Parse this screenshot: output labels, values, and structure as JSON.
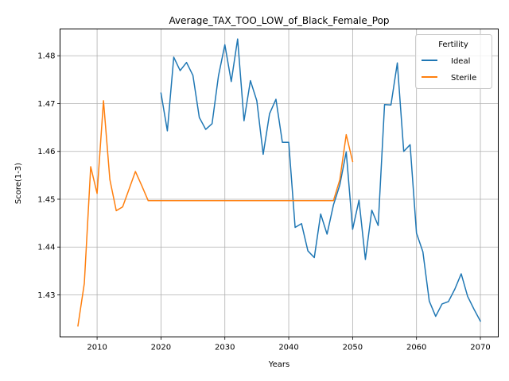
{
  "chart_data": {
    "type": "line",
    "title": "Average_TAX_TOO_LOW_of_Black_Female_Pop",
    "xlabel": "Years",
    "ylabel": "Score(1-3)",
    "xlim": [
      2004.2,
      2072.8
    ],
    "ylim": [
      1.4212,
      1.4856
    ],
    "xticks": [
      2010,
      2020,
      2030,
      2040,
      2050,
      2060,
      2070
    ],
    "yticks": [
      1.43,
      1.44,
      1.45,
      1.46,
      1.47,
      1.48
    ],
    "grid": true,
    "legend": {
      "title": "Fertility",
      "placement": "top-right"
    },
    "series": [
      {
        "name": "Ideal",
        "color": "#1f77b4",
        "x": [
          2020,
          2021,
          2022,
          2023,
          2024,
          2025,
          2026,
          2027,
          2028,
          2029,
          2030,
          2031,
          2032,
          2033,
          2034,
          2035,
          2036,
          2037,
          2038,
          2039,
          2040,
          2041,
          2042,
          2043,
          2044,
          2045,
          2046,
          2047,
          2048,
          2049,
          2050,
          2051,
          2052,
          2053,
          2054,
          2055,
          2056,
          2057,
          2058,
          2059,
          2060,
          2061,
          2062,
          2063,
          2064,
          2065,
          2066,
          2067,
          2068,
          2069,
          2070
        ],
        "y": [
          1.4722,
          1.4643,
          1.4797,
          1.4769,
          1.4786,
          1.4759,
          1.4671,
          1.4646,
          1.4658,
          1.4758,
          1.4823,
          1.4746,
          1.4835,
          1.4664,
          1.4748,
          1.4706,
          1.4594,
          1.4679,
          1.4709,
          1.4619,
          1.4619,
          1.4441,
          1.4449,
          1.4392,
          1.4378,
          1.4469,
          1.4427,
          1.4488,
          1.453,
          1.4599,
          1.4437,
          1.4498,
          1.4374,
          1.4477,
          1.4445,
          1.4698,
          1.4697,
          1.4785,
          1.46,
          1.4614,
          1.4429,
          1.439,
          1.4287,
          1.4255,
          1.4281,
          1.4286,
          1.4312,
          1.4344,
          1.4297,
          1.427,
          1.4245
        ]
      },
      {
        "name": "Sterile",
        "color": "#ff7f0e",
        "x": [
          2007,
          2008,
          2009,
          2010,
          2011,
          2012,
          2013,
          2014,
          2015,
          2016,
          2017,
          2018,
          2019,
          2020,
          2021,
          2022,
          2023,
          2024,
          2025,
          2026,
          2027,
          2028,
          2029,
          2030,
          2031,
          2032,
          2033,
          2034,
          2035,
          2036,
          2037,
          2038,
          2039,
          2040,
          2041,
          2042,
          2043,
          2044,
          2045,
          2046,
          2047,
          2048,
          2049,
          2050
        ],
        "y": [
          1.4235,
          1.4324,
          1.4568,
          1.4512,
          1.4706,
          1.4541,
          1.4476,
          1.4484,
          1.4521,
          1.4558,
          1.4528,
          1.4497,
          1.4497,
          1.4497,
          1.4497,
          1.4497,
          1.4497,
          1.4497,
          1.4497,
          1.4497,
          1.4497,
          1.4497,
          1.4497,
          1.4497,
          1.4497,
          1.4497,
          1.4497,
          1.4497,
          1.4497,
          1.4497,
          1.4497,
          1.4497,
          1.4497,
          1.4497,
          1.4497,
          1.4497,
          1.4497,
          1.4497,
          1.4497,
          1.4497,
          1.4497,
          1.4541,
          1.4635,
          1.4579
        ]
      }
    ]
  }
}
